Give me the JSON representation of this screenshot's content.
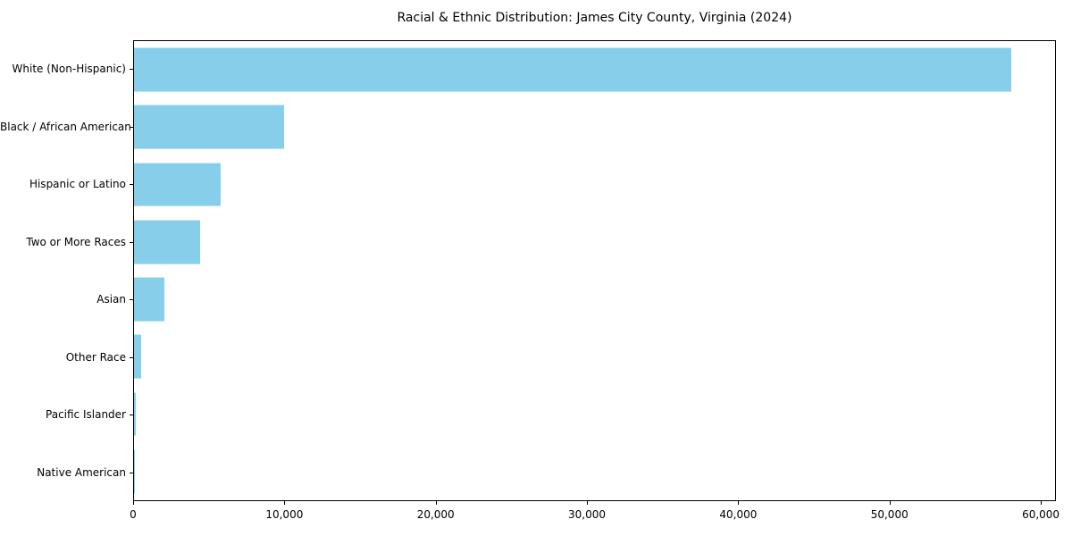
{
  "title": "Racial & Ethnic Distribution: James City County, Virginia (2024)",
  "chart_data": {
    "type": "bar",
    "orientation": "horizontal",
    "title": "Racial & Ethnic Distribution: James City County, Virginia (2024)",
    "xlabel": "",
    "ylabel": "",
    "categories": [
      "White (Non-Hispanic)",
      "Black / African American",
      "Hispanic or Latino",
      "Two or More Races",
      "Asian",
      "Other Race",
      "Pacific Islander",
      "Native American"
    ],
    "values": [
      58100,
      9960,
      5740,
      4390,
      2030,
      500,
      100,
      50
    ],
    "xlim": [
      0,
      61000
    ],
    "xticks": [
      0,
      10000,
      20000,
      30000,
      40000,
      50000,
      60000
    ],
    "xtick_labels": [
      "0",
      "10,000",
      "20,000",
      "30,000",
      "40,000",
      "50,000",
      "60,000"
    ],
    "bar_color": "#87CEEB",
    "axis_color": "#000000",
    "grid": false,
    "legend": null
  }
}
